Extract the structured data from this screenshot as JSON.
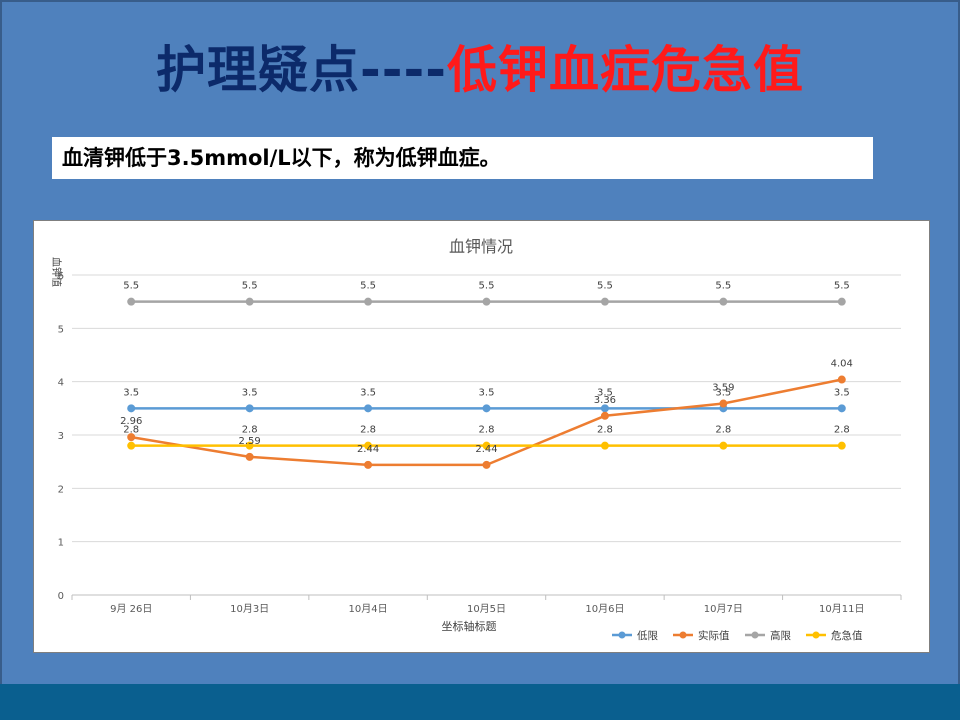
{
  "slide": {
    "title_part1": "护理疑点----",
    "title_part2": "低钾血症危急值",
    "subtitle": "血清钾低于3.5mmol/L以下，称为低钾血症。"
  },
  "colors": {
    "background": "#4f81bd",
    "title_dark": "#0c2a6a",
    "title_red": "#ff1a1a",
    "series_low": "#5b9bd5",
    "series_actual": "#ed7d31",
    "series_high": "#a5a5a5",
    "series_critical": "#ffc000"
  },
  "chart_data": {
    "type": "line",
    "title": "血钾情况",
    "xlabel": "坐标轴标题",
    "ylabel": "血钾值",
    "ylim": [
      0,
      6
    ],
    "yticks": [
      0,
      1,
      2,
      3,
      4,
      5,
      6
    ],
    "grid": true,
    "legend_position": "bottom-right",
    "categories": [
      "9月 26日",
      "10月3日",
      "10月4日",
      "10月5日",
      "10月6日",
      "10月7日",
      "10月11日"
    ],
    "series": [
      {
        "name": "低限",
        "color": "#5b9bd5",
        "values": [
          3.5,
          3.5,
          3.5,
          3.5,
          3.5,
          3.5,
          3.5
        ]
      },
      {
        "name": "实际值",
        "color": "#ed7d31",
        "values": [
          2.96,
          2.59,
          2.44,
          2.44,
          3.36,
          3.59,
          4.04
        ]
      },
      {
        "name": "高限",
        "color": "#a5a5a5",
        "values": [
          5.5,
          5.5,
          5.5,
          5.5,
          5.5,
          5.5,
          5.5
        ]
      },
      {
        "name": "危急值",
        "color": "#ffc000",
        "values": [
          2.8,
          2.8,
          2.8,
          2.8,
          2.8,
          2.8,
          2.8
        ]
      }
    ]
  }
}
